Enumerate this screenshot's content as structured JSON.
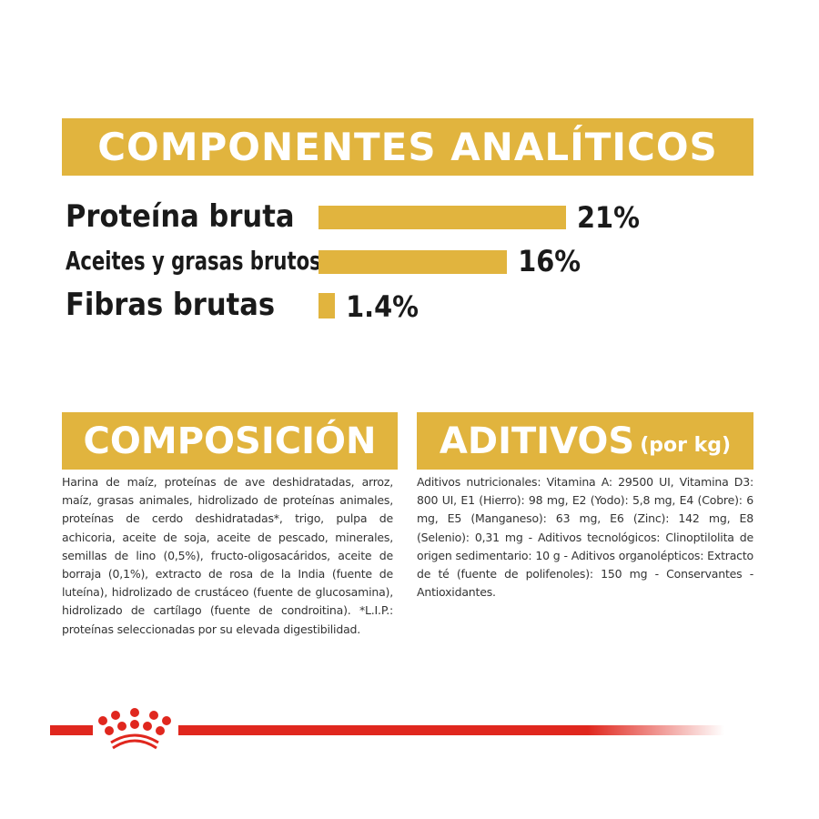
{
  "analytical": {
    "title": "COMPONENTES ANALÍTICOS",
    "items": [
      {
        "label": "Proteína bruta",
        "value": "21%",
        "percent": 21
      },
      {
        "label": "Aceites y grasas brutos",
        "value": "16%",
        "percent": 16
      },
      {
        "label": "Fibras brutas",
        "value": "1.4%",
        "percent": 1.4
      }
    ]
  },
  "composition": {
    "title": "COMPOSICIÓN",
    "text": "Harina de maíz, proteínas de ave deshidratadas, arroz, maíz, grasas animales, hidrolizado de proteínas animales, proteínas de cerdo deshidratadas*, trigo, pulpa de achicoria, aceite de soja, aceite de pescado, minerales, semillas de lino (0,5%), fructo-oligosacáridos, aceite de borraja (0,1%), extracto de rosa de la India (fuente de luteína), hidrolizado de crustáceo (fuente de glucosamina), hidrolizado de cartílago (fuente de condroitina). *L.I.P.: proteínas seleccionadas por su elevada digestibilidad."
  },
  "additives": {
    "title": "ADITIVOS",
    "unit": "(por kg)",
    "text": "Aditivos nutricionales: Vitamina A: 29500 UI, Vitamina D3: 800 UI, E1 (Hierro): 98 mg, E2 (Yodo): 5,8 mg, E4 (Cobre): 6 mg, E5 (Manganeso): 63 mg, E6 (Zinc): 142 mg, E8 (Selenio): 0,31 mg - Aditivos tecnológicos: Clinoptilolita de origen sedimentario: 10 g - Aditivos organolépticos: Extracto de té (fuente de polifenoles): 150 mg - Conservantes - Antioxidantes."
  },
  "colors": {
    "gold": "#E1B43E",
    "brand_red": "#E0271E"
  },
  "logo": {
    "icon": "royal-crown-icon"
  }
}
